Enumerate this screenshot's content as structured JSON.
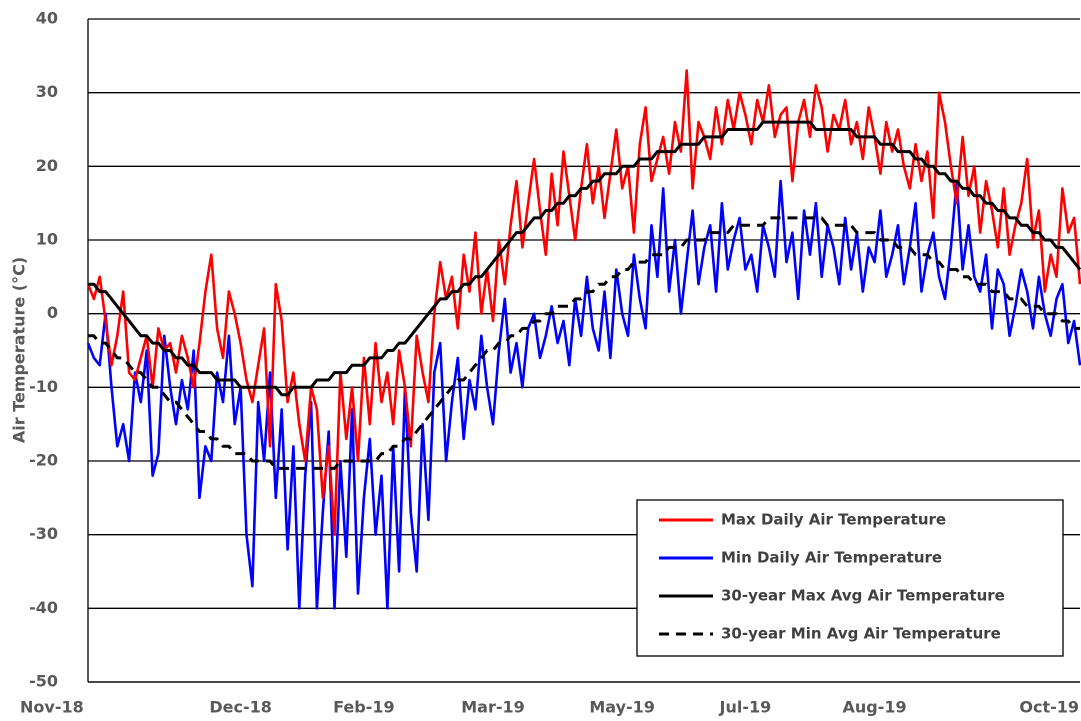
{
  "chart_data": {
    "type": "line",
    "y_label": "Air Temperature (°C)",
    "ylim": [
      -50,
      40
    ],
    "yticks": [
      -50,
      -40,
      -30,
      -20,
      -10,
      0,
      10,
      20,
      30,
      40
    ],
    "grid": true,
    "legend": "lower right",
    "categories": [
      "Nov-18",
      null,
      null,
      null,
      null,
      null,
      null,
      null,
      null,
      null,
      null,
      null,
      null,
      null,
      null,
      null,
      null,
      null,
      null,
      null,
      null,
      null,
      null,
      null,
      null,
      null,
      "Dec-18",
      null,
      null,
      null,
      null,
      null,
      null,
      null,
      null,
      null,
      null,
      null,
      null,
      null,
      null,
      null,
      null,
      null,
      null,
      null,
      null,
      "Feb-19",
      null,
      null,
      null,
      null,
      null,
      null,
      null,
      null,
      null,
      null,
      null,
      null,
      null,
      null,
      null,
      null,
      null,
      null,
      null,
      null,
      null,
      "Mar-19",
      null,
      null,
      null,
      null,
      null,
      null,
      null,
      null,
      null,
      null,
      null,
      null,
      null,
      null,
      null,
      null,
      null,
      null,
      null,
      null,
      null,
      "May-19",
      null,
      null,
      null,
      null,
      null,
      null,
      null,
      null,
      null,
      null,
      null,
      null,
      null,
      null,
      null,
      null,
      null,
      null,
      null,
      null,
      "Jul-19",
      null,
      null,
      null,
      null,
      null,
      null,
      null,
      null,
      null,
      null,
      null,
      null,
      null,
      null,
      null,
      null,
      null,
      null,
      null,
      null,
      null,
      "Aug-19",
      null,
      null,
      null,
      null,
      null,
      null,
      null,
      null,
      null,
      null,
      null,
      null,
      null,
      null,
      null,
      null,
      null,
      null,
      null,
      null,
      null,
      null,
      null,
      null,
      null,
      null,
      null,
      null,
      null,
      null,
      null,
      "Oct-19",
      null,
      null,
      null
    ],
    "series": [
      {
        "name": "Max Daily Air Temperature",
        "color": "#ff0000",
        "dashed": false,
        "values": [
          4,
          2,
          5,
          -1,
          -7,
          -3,
          3,
          -8,
          -9,
          -6,
          -3,
          -10,
          -2,
          -5,
          -4,
          -8,
          -3,
          -6,
          -10,
          -4,
          3,
          8,
          -2,
          -6,
          3,
          0,
          -4,
          -9,
          -12,
          -7,
          -2,
          -18,
          4,
          -1,
          -12,
          -8,
          -15,
          -20,
          -10,
          -13,
          -25,
          -18,
          -30,
          -8,
          -17,
          -10,
          -20,
          -6,
          -15,
          -4,
          -12,
          -8,
          -15,
          -5,
          -10,
          -18,
          -3,
          -8,
          -12,
          0,
          7,
          2,
          5,
          -2,
          8,
          3,
          11,
          0,
          6,
          -1,
          10,
          4,
          12,
          18,
          9,
          15,
          21,
          14,
          8,
          19,
          12,
          22,
          16,
          10,
          17,
          23,
          15,
          20,
          13,
          19,
          25,
          17,
          20,
          11,
          23,
          28,
          18,
          21,
          24,
          19,
          26,
          22,
          33,
          17,
          26,
          24,
          21,
          28,
          23,
          29,
          25,
          30,
          27,
          23,
          29,
          26,
          31,
          24,
          27,
          28,
          18,
          26,
          29,
          24,
          31,
          28,
          22,
          27,
          25,
          29,
          23,
          26,
          21,
          28,
          24,
          19,
          26,
          22,
          25,
          20,
          17,
          23,
          18,
          22,
          13,
          30,
          26,
          20,
          15,
          24,
          16,
          20,
          11,
          18,
          14,
          9,
          17,
          8,
          12,
          15,
          21,
          10,
          14,
          3,
          8,
          5,
          17,
          11,
          13,
          4
        ]
      },
      {
        "name": "Min Daily Air Temperature",
        "color": "#0000ff",
        "dashed": false,
        "values": [
          -4,
          -6,
          -7,
          0,
          -10,
          -18,
          -15,
          -20,
          -8,
          -12,
          -5,
          -22,
          -19,
          -3,
          -10,
          -15,
          -9,
          -13,
          -5,
          -25,
          -18,
          -20,
          -8,
          -12,
          -3,
          -15,
          -10,
          -30,
          -37,
          -12,
          -20,
          -8,
          -25,
          -13,
          -32,
          -18,
          -40,
          -22,
          -12,
          -40,
          -27,
          -16,
          -40,
          -20,
          -33,
          -13,
          -38,
          -25,
          -17,
          -30,
          -22,
          -40,
          -18,
          -35,
          -10,
          -27,
          -35,
          -15,
          -28,
          -8,
          -4,
          -20,
          -12,
          -6,
          -17,
          -9,
          -13,
          -3,
          -10,
          -15,
          -5,
          2,
          -8,
          -4,
          -10,
          -2,
          0,
          -6,
          -3,
          1,
          -4,
          -1,
          -7,
          2,
          -3,
          5,
          -2,
          -5,
          3,
          -6,
          6,
          0,
          -3,
          8,
          2,
          -2,
          12,
          5,
          17,
          3,
          10,
          0,
          7,
          14,
          4,
          9,
          12,
          3,
          15,
          6,
          10,
          13,
          6,
          8,
          3,
          12,
          9,
          5,
          18,
          7,
          11,
          2,
          14,
          8,
          15,
          5,
          12,
          9,
          4,
          13,
          6,
          11,
          3,
          9,
          7,
          14,
          5,
          8,
          12,
          4,
          9,
          15,
          3,
          8,
          11,
          5,
          2,
          9,
          18,
          6,
          12,
          5,
          3,
          8,
          -2,
          6,
          4,
          -3,
          1,
          6,
          3,
          -2,
          5,
          0,
          -3,
          2,
          4,
          -4,
          -1,
          -7
        ]
      },
      {
        "name": "30-year Max Avg Air Temperature",
        "color": "#000000",
        "dashed": false,
        "values": [
          4,
          4,
          3,
          3,
          2,
          1,
          0,
          -1,
          -2,
          -3,
          -3,
          -4,
          -4,
          -5,
          -5,
          -6,
          -6,
          -7,
          -7,
          -8,
          -8,
          -8,
          -9,
          -9,
          -9,
          -9,
          -10,
          -10,
          -10,
          -10,
          -10,
          -10,
          -10,
          -11,
          -11,
          -10,
          -10,
          -10,
          -10,
          -9,
          -9,
          -9,
          -8,
          -8,
          -8,
          -7,
          -7,
          -7,
          -6,
          -6,
          -6,
          -5,
          -5,
          -4,
          -4,
          -3,
          -2,
          -1,
          0,
          1,
          2,
          2,
          3,
          3,
          4,
          4,
          5,
          5,
          6,
          7,
          8,
          9,
          10,
          11,
          11,
          12,
          13,
          13,
          14,
          14,
          15,
          15,
          16,
          16,
          17,
          17,
          18,
          18,
          19,
          19,
          19,
          20,
          20,
          20,
          21,
          21,
          21,
          22,
          22,
          22,
          22,
          23,
          23,
          23,
          23,
          24,
          24,
          24,
          24,
          25,
          25,
          25,
          25,
          25,
          25,
          26,
          26,
          26,
          26,
          26,
          26,
          26,
          26,
          26,
          25,
          25,
          25,
          25,
          25,
          25,
          25,
          24,
          24,
          24,
          24,
          23,
          23,
          23,
          22,
          22,
          22,
          21,
          21,
          20,
          20,
          19,
          19,
          18,
          18,
          17,
          17,
          16,
          16,
          15,
          15,
          14,
          14,
          13,
          13,
          12,
          12,
          11,
          11,
          10,
          10,
          9,
          9,
          8,
          7,
          6
        ]
      },
      {
        "name": "30-year Min Avg Air Temperature",
        "color": "#000000",
        "dashed": true,
        "values": [
          -3,
          -3,
          -4,
          -4,
          -5,
          -6,
          -6,
          -7,
          -8,
          -8,
          -9,
          -10,
          -10,
          -11,
          -12,
          -12,
          -13,
          -14,
          -15,
          -16,
          -16,
          -17,
          -17,
          -18,
          -18,
          -19,
          -19,
          -19,
          -20,
          -20,
          -20,
          -20,
          -21,
          -21,
          -21,
          -21,
          -21,
          -21,
          -21,
          -21,
          -21,
          -21,
          -21,
          -20,
          -20,
          -20,
          -20,
          -20,
          -20,
          -20,
          -19,
          -19,
          -18,
          -18,
          -17,
          -17,
          -16,
          -15,
          -14,
          -13,
          -12,
          -11,
          -10,
          -9,
          -9,
          -8,
          -7,
          -6,
          -5,
          -5,
          -4,
          -4,
          -3,
          -3,
          -2,
          -2,
          -1,
          -1,
          0,
          0,
          1,
          1,
          1,
          2,
          2,
          3,
          3,
          4,
          4,
          5,
          5,
          6,
          6,
          7,
          7,
          7,
          8,
          8,
          8,
          9,
          9,
          9,
          10,
          10,
          10,
          10,
          11,
          11,
          11,
          11,
          12,
          12,
          12,
          12,
          12,
          12,
          13,
          13,
          13,
          13,
          13,
          13,
          13,
          13,
          13,
          13,
          12,
          12,
          12,
          12,
          12,
          11,
          11,
          11,
          11,
          10,
          10,
          10,
          9,
          9,
          9,
          8,
          8,
          8,
          7,
          7,
          6,
          6,
          6,
          5,
          5,
          4,
          4,
          4,
          3,
          3,
          3,
          2,
          2,
          2,
          1,
          1,
          1,
          0,
          0,
          0,
          -1,
          -1,
          -2,
          -2
        ]
      }
    ]
  }
}
